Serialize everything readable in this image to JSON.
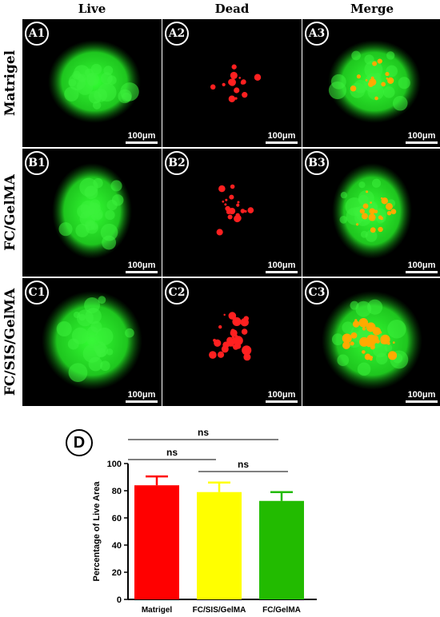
{
  "columns": [
    "Live",
    "Dead",
    "Merge"
  ],
  "rows": [
    "Matrigel",
    "FC/GelMA",
    "FC/SIS/GelMA"
  ],
  "panel_labels": [
    [
      "A1",
      "A2",
      "A3"
    ],
    [
      "B1",
      "B2",
      "B3"
    ],
    [
      "C1",
      "C2",
      "C3"
    ]
  ],
  "scale_bar_label": "100μm",
  "panel_d_label": "D",
  "colors": {
    "live": "#22dd22",
    "dead": "#ff2020",
    "merge_orange": "#ffaa00"
  },
  "chart_data": {
    "type": "bar",
    "categories": [
      "Matrigel",
      "FC/SIS/GelMA",
      "FC/GelMA"
    ],
    "values": [
      84,
      79,
      72.5
    ],
    "errors": [
      6.5,
      7,
      6.5
    ],
    "bar_colors": [
      "#ff0000",
      "#ffff00",
      "#22bb00"
    ],
    "ylabel": "Percentage of Live Area",
    "ylim": [
      0,
      100
    ],
    "yticks": [
      0,
      20,
      40,
      60,
      80,
      100
    ],
    "significance": [
      {
        "from": 0,
        "to": 2,
        "label": "ns"
      },
      {
        "from": 0,
        "to": 1,
        "label": "ns"
      },
      {
        "from": 1,
        "to": 2,
        "label": "ns"
      }
    ]
  }
}
